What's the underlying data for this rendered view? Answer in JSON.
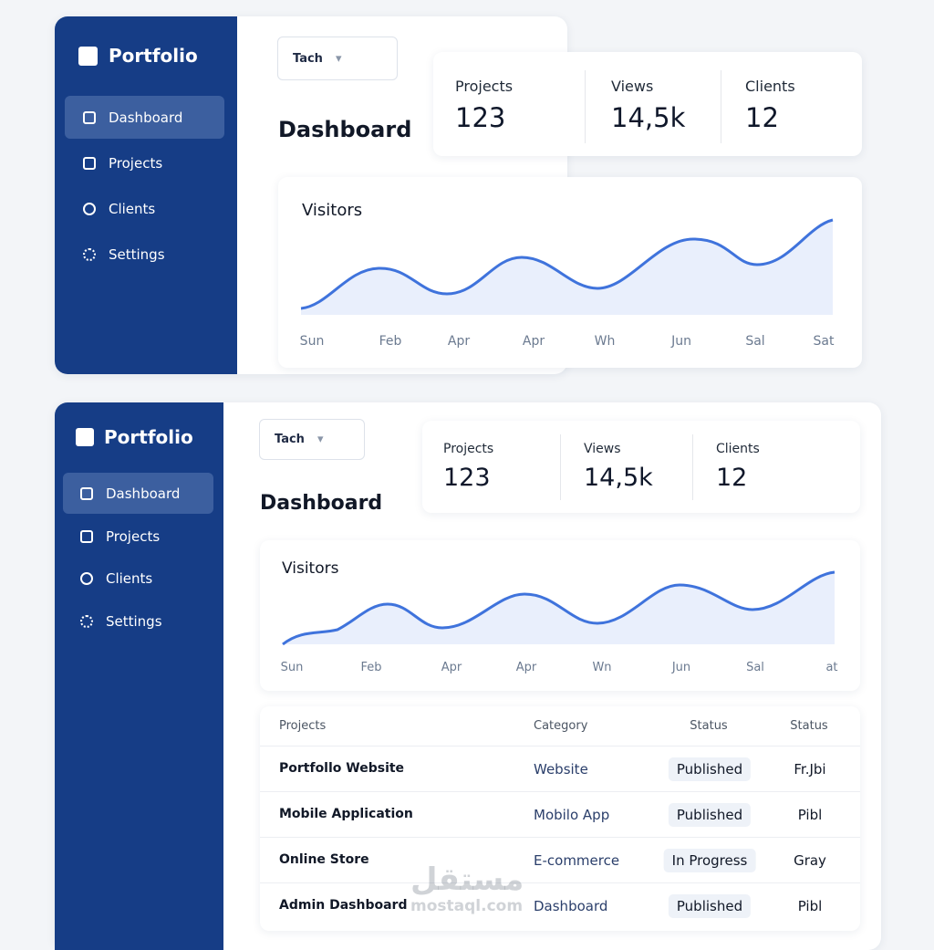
{
  "panels": [
    {
      "brand": "Portfolio",
      "nav": [
        "Dashboard",
        "Projects",
        "Clients",
        "Settings"
      ],
      "select": "Tach",
      "title": "Dashboard",
      "stats": [
        {
          "label": "Projects",
          "value": "123"
        },
        {
          "label": "Views",
          "value": "14,5k"
        },
        {
          "label": "Clients",
          "value": "12"
        }
      ],
      "chart": {
        "title": "Visitors",
        "labels": [
          "Sun",
          "Feb",
          "Apr",
          "Apr",
          "Wh",
          "Jun",
          "Sal",
          "Sat"
        ]
      }
    },
    {
      "brand": "Portfolio",
      "nav": [
        "Dashboard",
        "Projects",
        "Clients",
        "Settings"
      ],
      "select": "Tach",
      "title": "Dashboard",
      "stats": [
        {
          "label": "Projects",
          "value": "123"
        },
        {
          "label": "Views",
          "value": "14,5k"
        },
        {
          "label": "Clients",
          "value": "12"
        }
      ],
      "chart": {
        "title": "Visitors",
        "labels": [
          "Sun",
          "Feb",
          "Apr",
          "Apr",
          "Wn",
          "Jun",
          "Sal",
          "at"
        ]
      },
      "table": {
        "headers": [
          "Projects",
          "Category",
          "Status",
          "Status"
        ],
        "rows": [
          [
            "Portfollo Website",
            "Website",
            "Published",
            "Fr.Jbi"
          ],
          [
            "Mobile Application",
            "Mobilo App",
            "Published",
            "Pibl"
          ],
          [
            "Online Store",
            "E-commerce",
            "In Progress",
            "Gray"
          ],
          [
            "Admin Dashboard",
            "Dashboard",
            "Published",
            "Pibl"
          ]
        ]
      }
    }
  ],
  "watermark": {
    "arabic": "مستقل",
    "latin": "mostaql.com"
  }
}
